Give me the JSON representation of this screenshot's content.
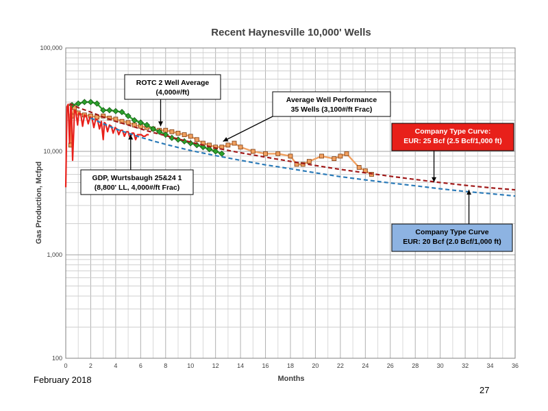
{
  "chart_data": {
    "type": "line",
    "title": "Recent Haynesville 10,000' Wells",
    "xlabel": "Months",
    "ylabel": "Gas Production, Mcfpd",
    "xlim": [
      0,
      36
    ],
    "ylim": [
      100,
      100000
    ],
    "yscale": "log",
    "grid": true,
    "x_ticks": [
      "0",
      "2",
      "4",
      "6",
      "8",
      "10",
      "12",
      "14",
      "16",
      "18",
      "20",
      "22",
      "24",
      "26",
      "28",
      "30",
      "32",
      "34",
      "36"
    ],
    "y_ticks": [
      "100",
      "1,000",
      "10,000",
      "100,000"
    ],
    "series": [
      {
        "key": "avg35",
        "color": "#f0a060",
        "marker": "square",
        "x": [
          0.4,
          0.5,
          0.7,
          1.0,
          1.5,
          2.0,
          2.5,
          3.0,
          3.5,
          4.0,
          4.5,
          5.0,
          5.5,
          6.0,
          6.5,
          7.0,
          7.5,
          8.0,
          8.5,
          9.0,
          9.5,
          10.0,
          10.5,
          11.0,
          11.5,
          12.0,
          12.5,
          13.0,
          13.5,
          14.0,
          15.0,
          16.0,
          17.0,
          18.0,
          18.5,
          19.0,
          19.5,
          20.5,
          21.5,
          22.0,
          22.5,
          23.5,
          24.0,
          24.5
        ],
        "y": [
          11500,
          22000,
          26500,
          23500,
          22500,
          22000,
          21500,
          22000,
          21000,
          20500,
          19500,
          19000,
          18000,
          17500,
          17000,
          16500,
          16000,
          16000,
          15500,
          15000,
          14500,
          14000,
          13000,
          12000,
          11500,
          11000,
          11000,
          11500,
          12000,
          11000,
          10000,
          9500,
          9500,
          9000,
          7500,
          7500,
          8000,
          9000,
          8500,
          9000,
          9500,
          7000,
          6500,
          6000
        ]
      },
      {
        "key": "rotc",
        "color": "#2ca02c",
        "marker": "diamond",
        "x": [
          0.5,
          1.0,
          1.5,
          2.0,
          2.5,
          3.0,
          3.5,
          4.0,
          4.5,
          5.0,
          5.5,
          6.0,
          6.5,
          7.0,
          7.5,
          8.0,
          8.5,
          9.0,
          9.5,
          10.0,
          10.5,
          11.0,
          11.5,
          12.0,
          12.5
        ],
        "y": [
          28000,
          29000,
          30000,
          30000,
          29000,
          25000,
          25000,
          24500,
          24000,
          22000,
          20000,
          19000,
          18000,
          16500,
          15500,
          14500,
          13500,
          13000,
          12500,
          12000,
          11500,
          11000,
          10500,
          10000,
          9500
        ]
      },
      {
        "key": "gdp",
        "color": "#e8201a",
        "marker": "none",
        "x": [
          0.0,
          0.1,
          0.2,
          0.3,
          0.4,
          0.45,
          0.55,
          0.7,
          0.8,
          0.95,
          1.05,
          1.2,
          1.35,
          1.5,
          1.65,
          1.8,
          1.95,
          2.1,
          2.25,
          2.4,
          2.55,
          2.7,
          2.85,
          3.0,
          3.1,
          3.2,
          3.35,
          3.5,
          3.65,
          3.8,
          3.95,
          4.1,
          4.25,
          4.4,
          4.55,
          4.7,
          4.85,
          5.0,
          5.15,
          5.3,
          5.45,
          5.6,
          5.75,
          5.9,
          6.05,
          6.2,
          6.35,
          6.5,
          6.65
        ],
        "y": [
          4500,
          27000,
          28500,
          12000,
          27500,
          26500,
          8200,
          25000,
          24500,
          18000,
          23500,
          23000,
          17500,
          22500,
          22000,
          18500,
          21500,
          21000,
          17000,
          20500,
          20000,
          16500,
          19500,
          13000,
          19000,
          18500,
          15500,
          18000,
          17500,
          15000,
          17000,
          16500,
          14500,
          16000,
          16000,
          14000,
          15500,
          15500,
          13500,
          15000,
          15000,
          13000,
          14500,
          14500,
          14500,
          14000,
          14000,
          14500,
          14500
        ]
      },
      {
        "key": "tc25",
        "color": "#a01818",
        "dash": true,
        "x": [
          0.3,
          1,
          2,
          3,
          4,
          5,
          6,
          7,
          8,
          9,
          10,
          12,
          14,
          16,
          18,
          20,
          22,
          24,
          26,
          28,
          30,
          32,
          34,
          36
        ],
        "y": [
          29000,
          26500,
          24000,
          21500,
          19500,
          18000,
          16500,
          15200,
          14200,
          13200,
          12300,
          10800,
          9700,
          8800,
          8000,
          7300,
          6700,
          6200,
          5750,
          5350,
          5000,
          4700,
          4450,
          4250
        ]
      },
      {
        "key": "tc20",
        "color": "#2a7ab8",
        "dash": true,
        "x": [
          2,
          3,
          4,
          5,
          6,
          7,
          8,
          9,
          10,
          12,
          14,
          16,
          18,
          20,
          22,
          24,
          26,
          28,
          30,
          32,
          34,
          36
        ],
        "y": [
          21000,
          18500,
          16500,
          15000,
          13700,
          12600,
          11700,
          10900,
          10200,
          9100,
          8200,
          7400,
          6800,
          6200,
          5700,
          5300,
          4950,
          4650,
          4350,
          4100,
          3900,
          3700
        ]
      }
    ],
    "annotations": [
      {
        "key": "rotc",
        "lines": [
          "ROTC 2 Well Average",
          "(4,000#/ft)"
        ],
        "fill": "#ffffff",
        "text_color": "#000000",
        "target": [
          7.6,
          17500
        ]
      },
      {
        "key": "avg35",
        "lines": [
          "Average Well Performance",
          "35 Wells (3,100#/ft Frac)"
        ],
        "fill": "#ffffff",
        "text_color": "#000000",
        "target": [
          12.6,
          12500
        ]
      },
      {
        "key": "gdp",
        "lines": [
          "GDP, Wurtsbaugh 25&24 1",
          "(8,800' LL, 4,000#/ft Frac)"
        ],
        "fill": "#ffffff",
        "text_color": "#000000",
        "target": [
          5.2,
          14500
        ]
      },
      {
        "key": "tc25",
        "lines": [
          "Company Type Curve:",
          "EUR: 25 Bcf (2.5 Bcf/1,000 ft)"
        ],
        "fill": "#e8201a",
        "text_color": "#ffffff",
        "target": [
          29.5,
          5050
        ]
      },
      {
        "key": "tc20",
        "lines": [
          "Company Type Curve",
          "EUR: 20 Bcf (2.0 Bcf/1,000 ft)"
        ],
        "fill": "#8db3e2",
        "text_color": "#000000",
        "target": [
          32.3,
          4250
        ]
      }
    ]
  },
  "footer": {
    "date": "February 2018",
    "page_number": "27"
  }
}
